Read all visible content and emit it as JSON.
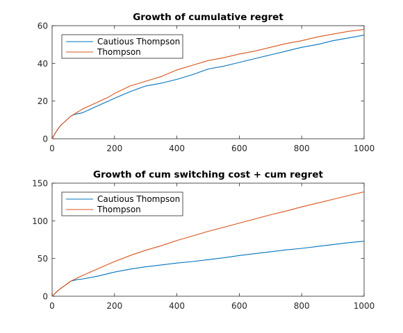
{
  "chart_data": [
    {
      "type": "line",
      "title": "Growth of cumulative regret",
      "xlabel": "",
      "ylabel": "",
      "xlim": [
        0,
        1000
      ],
      "ylim": [
        0,
        60
      ],
      "xticks": [
        0,
        200,
        400,
        600,
        800,
        1000
      ],
      "yticks": [
        0,
        20,
        40,
        60
      ],
      "grid": false,
      "legend_position": "top-left",
      "series": [
        {
          "name": "Cautious Thompson",
          "color": "#0072bd",
          "x": [
            0,
            10,
            20,
            30,
            40,
            50,
            60,
            70,
            80,
            90,
            100,
            120,
            140,
            160,
            180,
            200,
            250,
            300,
            350,
            400,
            450,
            500,
            550,
            600,
            650,
            700,
            750,
            800,
            850,
            900,
            950,
            1000
          ],
          "y": [
            0,
            3,
            5.5,
            7.5,
            9,
            10.5,
            12,
            12.8,
            13.2,
            13.5,
            14,
            15.5,
            17,
            18.5,
            20,
            21.5,
            25,
            28,
            29.5,
            31.5,
            34,
            37,
            38.5,
            40.5,
            42.5,
            44.5,
            46.5,
            48.5,
            50,
            52,
            53.5,
            55
          ]
        },
        {
          "name": "Thompson",
          "color": "#d95319",
          "x": [
            0,
            10,
            20,
            30,
            40,
            50,
            60,
            70,
            80,
            90,
            100,
            120,
            140,
            160,
            180,
            200,
            250,
            300,
            350,
            400,
            450,
            500,
            550,
            600,
            650,
            700,
            750,
            800,
            850,
            900,
            950,
            1000
          ],
          "y": [
            0,
            3,
            5.5,
            7.5,
            9,
            10.5,
            12,
            13,
            14,
            15,
            16,
            17.5,
            19,
            20.5,
            22,
            24,
            28,
            30.5,
            33,
            36.5,
            39,
            41.5,
            43,
            45,
            46.5,
            48.5,
            50.5,
            52,
            54,
            55.5,
            57,
            58
          ]
        }
      ]
    },
    {
      "type": "line",
      "title": "Growth of cum switching cost + cum regret",
      "xlabel": "",
      "ylabel": "",
      "xlim": [
        0,
        1000
      ],
      "ylim": [
        0,
        150
      ],
      "xticks": [
        0,
        200,
        400,
        600,
        800,
        1000
      ],
      "yticks": [
        0,
        50,
        100,
        150
      ],
      "grid": false,
      "legend_position": "top-left",
      "series": [
        {
          "name": "Cautious Thompson",
          "color": "#0072bd",
          "x": [
            0,
            10,
            20,
            30,
            40,
            50,
            60,
            70,
            80,
            100,
            150,
            200,
            250,
            300,
            350,
            400,
            450,
            500,
            550,
            600,
            650,
            700,
            750,
            800,
            850,
            900,
            950,
            1000
          ],
          "y": [
            0,
            4,
            8,
            11,
            14,
            17,
            20,
            21,
            22,
            23,
            27,
            32,
            36,
            39,
            41.5,
            44,
            46,
            48.5,
            51,
            54,
            56.5,
            59,
            61.5,
            63.5,
            66,
            68.5,
            71,
            73
          ]
        },
        {
          "name": "Thompson",
          "color": "#d95319",
          "x": [
            0,
            10,
            20,
            30,
            40,
            50,
            60,
            70,
            80,
            100,
            150,
            200,
            250,
            300,
            350,
            400,
            450,
            500,
            550,
            600,
            650,
            700,
            750,
            800,
            850,
            900,
            950,
            1000
          ],
          "y": [
            0,
            4,
            8,
            11,
            14,
            17,
            20,
            22,
            24,
            28,
            37,
            46,
            54,
            61,
            67,
            74,
            80,
            86,
            91.5,
            97,
            102.5,
            108,
            113,
            118.5,
            123.5,
            128.5,
            133.5,
            138.5
          ]
        }
      ]
    }
  ]
}
